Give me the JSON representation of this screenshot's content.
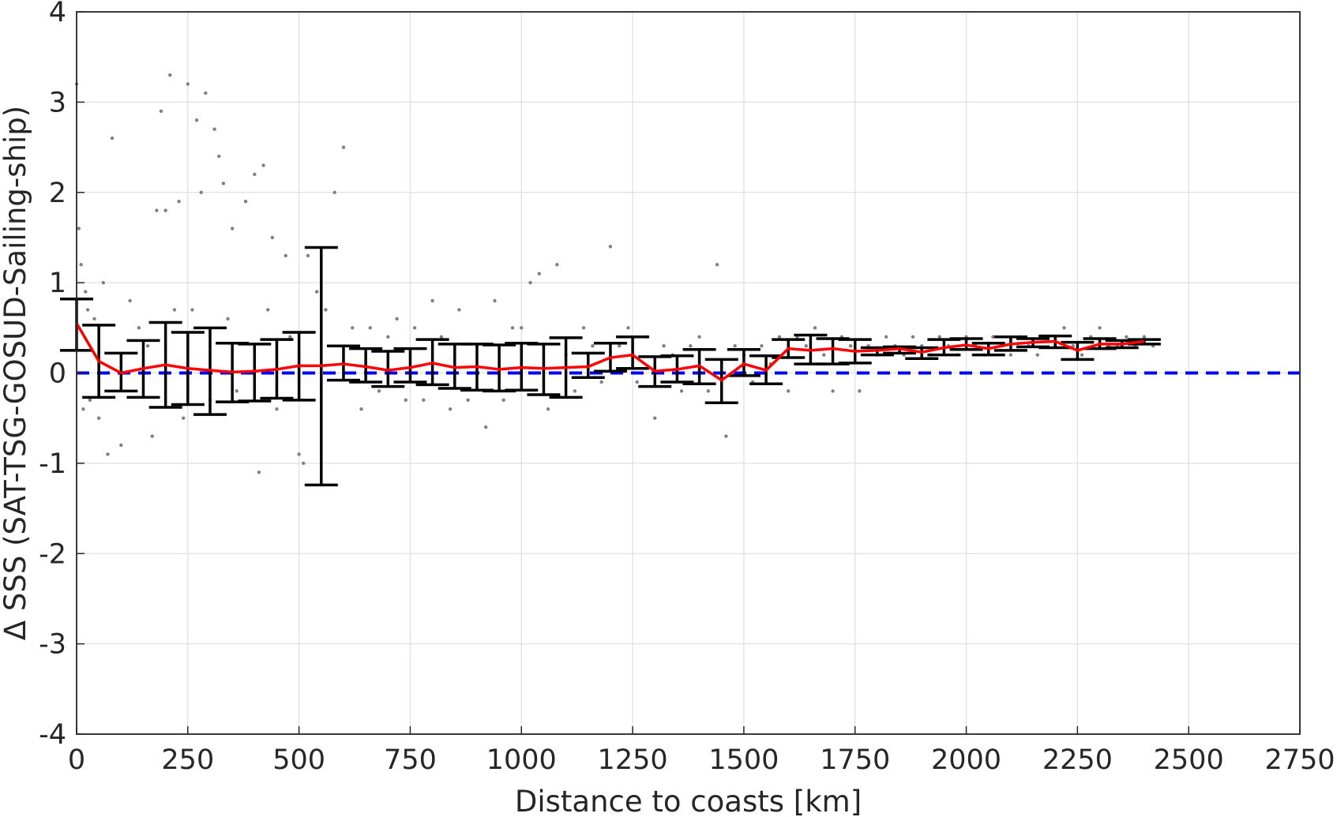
{
  "chart_data": {
    "type": "scatter",
    "xlabel": "Distance to coasts [km]",
    "ylabel": "Δ SSS (SAT-TSG-GOSUD-Sailing-ship)",
    "xlim": [
      0,
      2750
    ],
    "ylim": [
      -4,
      4
    ],
    "grid": true,
    "legend": "none",
    "x_ticks": [
      "0",
      "250",
      "500",
      "750",
      "1000",
      "1250",
      "1500",
      "1750",
      "2000",
      "2250",
      "2500",
      "2750"
    ],
    "y_ticks": [
      "-4",
      "-3",
      "-2",
      "-1",
      "0",
      "1",
      "2",
      "3",
      "4"
    ],
    "reference_line": {
      "y": 0,
      "style": "dashed",
      "color": "#0000ff"
    },
    "colors": {
      "scatter": "#808080",
      "mean": "#ff0000",
      "errorbar": "#000000",
      "axis": "#262626",
      "grid": "#e0e0e0"
    },
    "series": [
      {
        "type": "errorbar",
        "x": [
          0,
          50,
          100,
          150,
          200,
          250,
          300,
          350,
          400,
          450,
          500,
          550,
          600,
          650,
          700,
          750,
          800,
          850,
          900,
          950,
          1000,
          1050,
          1100,
          1150,
          1200,
          1250,
          1300,
          1350,
          1400,
          1450,
          1500,
          1550,
          1600,
          1650,
          1700,
          1750,
          1800,
          1850,
          1900,
          1950,
          2000,
          2050,
          2100,
          2150,
          2200,
          2250,
          2300,
          2350,
          2400
        ],
        "y": [
          0.55,
          0.13,
          0.0,
          0.05,
          0.09,
          0.05,
          0.03,
          0.01,
          0.02,
          0.04,
          0.08,
          0.08,
          0.1,
          0.07,
          0.03,
          0.06,
          0.11,
          0.06,
          0.07,
          0.04,
          0.06,
          0.05,
          0.06,
          0.07,
          0.17,
          0.2,
          0.02,
          0.04,
          0.08,
          -0.08,
          0.1,
          0.03,
          0.27,
          0.25,
          0.27,
          0.24,
          0.25,
          0.27,
          0.23,
          0.28,
          0.31,
          0.27,
          0.32,
          0.34,
          0.35,
          0.25,
          0.32,
          0.32,
          0.35
        ],
        "lower": [
          0.25,
          -0.27,
          -0.2,
          -0.27,
          -0.38,
          -0.35,
          -0.46,
          -0.32,
          -0.31,
          -0.28,
          -0.3,
          -1.24,
          -0.08,
          -0.1,
          -0.15,
          -0.1,
          -0.13,
          -0.17,
          -0.19,
          -0.2,
          -0.19,
          -0.24,
          -0.27,
          -0.05,
          0.02,
          0.05,
          -0.15,
          -0.1,
          -0.12,
          -0.33,
          -0.03,
          -0.12,
          0.17,
          0.1,
          0.1,
          0.11,
          0.2,
          0.22,
          0.16,
          0.2,
          0.26,
          0.2,
          0.25,
          0.29,
          0.28,
          0.15,
          0.27,
          0.28,
          0.32
        ],
        "upper": [
          0.82,
          0.53,
          0.22,
          0.36,
          0.56,
          0.45,
          0.5,
          0.33,
          0.32,
          0.37,
          0.45,
          1.39,
          0.3,
          0.27,
          0.24,
          0.27,
          0.37,
          0.32,
          0.32,
          0.31,
          0.33,
          0.32,
          0.39,
          0.22,
          0.33,
          0.4,
          0.18,
          0.19,
          0.26,
          0.15,
          0.26,
          0.19,
          0.37,
          0.42,
          0.38,
          0.37,
          0.28,
          0.29,
          0.28,
          0.37,
          0.38,
          0.33,
          0.4,
          0.38,
          0.41,
          0.34,
          0.38,
          0.36,
          0.37
        ]
      },
      {
        "type": "line",
        "x": [
          0,
          50,
          100,
          150,
          200,
          250,
          300,
          350,
          400,
          450,
          500,
          550,
          600,
          650,
          700,
          750,
          800,
          850,
          900,
          950,
          1000,
          1050,
          1100,
          1150,
          1200,
          1250,
          1300,
          1350,
          1400,
          1450,
          1500,
          1550,
          1600,
          1650,
          1700,
          1750,
          1800,
          1850,
          1900,
          1950,
          2000,
          2050,
          2100,
          2150,
          2200,
          2250,
          2300,
          2350,
          2400
        ],
        "y": [
          0.55,
          0.13,
          0.0,
          0.05,
          0.09,
          0.05,
          0.03,
          0.01,
          0.02,
          0.04,
          0.08,
          0.08,
          0.1,
          0.07,
          0.03,
          0.06,
          0.11,
          0.06,
          0.07,
          0.04,
          0.06,
          0.05,
          0.06,
          0.07,
          0.17,
          0.2,
          0.02,
          0.04,
          0.08,
          -0.08,
          0.1,
          0.03,
          0.27,
          0.25,
          0.27,
          0.24,
          0.25,
          0.27,
          0.23,
          0.28,
          0.31,
          0.27,
          0.32,
          0.34,
          0.35,
          0.25,
          0.32,
          0.32,
          0.35
        ]
      },
      {
        "type": "scatter",
        "x": [
          0,
          5,
          10,
          15,
          20,
          25,
          30,
          40,
          50,
          60,
          70,
          80,
          100,
          120,
          140,
          160,
          170,
          180,
          190,
          200,
          210,
          220,
          230,
          240,
          250,
          260,
          270,
          280,
          290,
          300,
          310,
          320,
          330,
          340,
          350,
          360,
          380,
          400,
          410,
          420,
          430,
          440,
          450,
          470,
          480,
          500,
          510,
          520,
          540,
          560,
          580,
          600,
          620,
          640,
          660,
          680,
          700,
          720,
          740,
          760,
          780,
          800,
          820,
          840,
          860,
          880,
          900,
          920,
          940,
          960,
          980,
          1000,
          1020,
          1040,
          1060,
          1080,
          1100,
          1120,
          1140,
          1160,
          1180,
          1200,
          1220,
          1240,
          1260,
          1280,
          1300,
          1320,
          1340,
          1360,
          1380,
          1400,
          1420,
          1440,
          1460,
          1480,
          1500,
          1520,
          1540,
          1560,
          1580,
          1600,
          1620,
          1640,
          1660,
          1680,
          1700,
          1720,
          1740,
          1760,
          1780,
          1800,
          1820,
          1840,
          1860,
          1880,
          1900,
          1920,
          1940,
          1960,
          1980,
          2000,
          2020,
          2040,
          2060,
          2080,
          2100,
          2120,
          2140,
          2160,
          2180,
          2200,
          2220,
          2240,
          2260,
          2280,
          2300,
          2320,
          2340,
          2360,
          2380,
          2400,
          2420
        ],
        "y": [
          3.2,
          1.6,
          1.2,
          -0.4,
          0.9,
          0.7,
          -0.3,
          0.6,
          -0.5,
          1.0,
          -0.9,
          2.6,
          -0.8,
          0.8,
          0.5,
          0.3,
          -0.7,
          1.8,
          2.9,
          1.8,
          3.3,
          0.7,
          1.9,
          -0.5,
          3.2,
          0.7,
          2.8,
          2.0,
          3.1,
          -0.3,
          2.7,
          2.4,
          2.1,
          0.6,
          1.6,
          -0.2,
          1.9,
          2.2,
          -1.1,
          2.3,
          0.7,
          1.5,
          -0.4,
          1.3,
          0.4,
          -0.9,
          -1.0,
          1.3,
          0.9,
          0.7,
          2.0,
          2.5,
          0.5,
          -0.4,
          0.5,
          -0.2,
          0.4,
          0.6,
          -0.3,
          0.5,
          -0.3,
          0.8,
          0.4,
          -0.4,
          0.7,
          -0.3,
          0.3,
          -0.6,
          0.8,
          -0.3,
          0.5,
          0.5,
          1.0,
          1.1,
          -0.4,
          1.2,
          0.2,
          -0.2,
          0.5,
          0.3,
          -0.1,
          1.4,
          0.3,
          0.5,
          -0.1,
          0.4,
          -0.5,
          0.3,
          0.2,
          -0.2,
          0.3,
          0.4,
          -0.2,
          1.2,
          -0.7,
          0.3,
          0.2,
          -0.1,
          0.3,
          0.1,
          0.4,
          -0.2,
          0.4,
          0.3,
          0.5,
          0.2,
          -0.2,
          0.4,
          0.3,
          -0.2,
          0.3,
          0.2,
          0.4,
          0.3,
          0.2,
          0.4,
          0.3,
          0.2,
          0.4,
          0.3,
          0.2,
          0.4,
          0.3,
          0.2,
          0.4,
          0.3,
          0.2,
          0.4,
          0.3,
          0.2,
          0.4,
          0.3,
          0.5,
          0.3,
          0.2,
          0.4,
          0.5,
          0.3,
          0.3,
          0.4,
          0.3,
          0.4,
          0.3
        ]
      }
    ]
  }
}
